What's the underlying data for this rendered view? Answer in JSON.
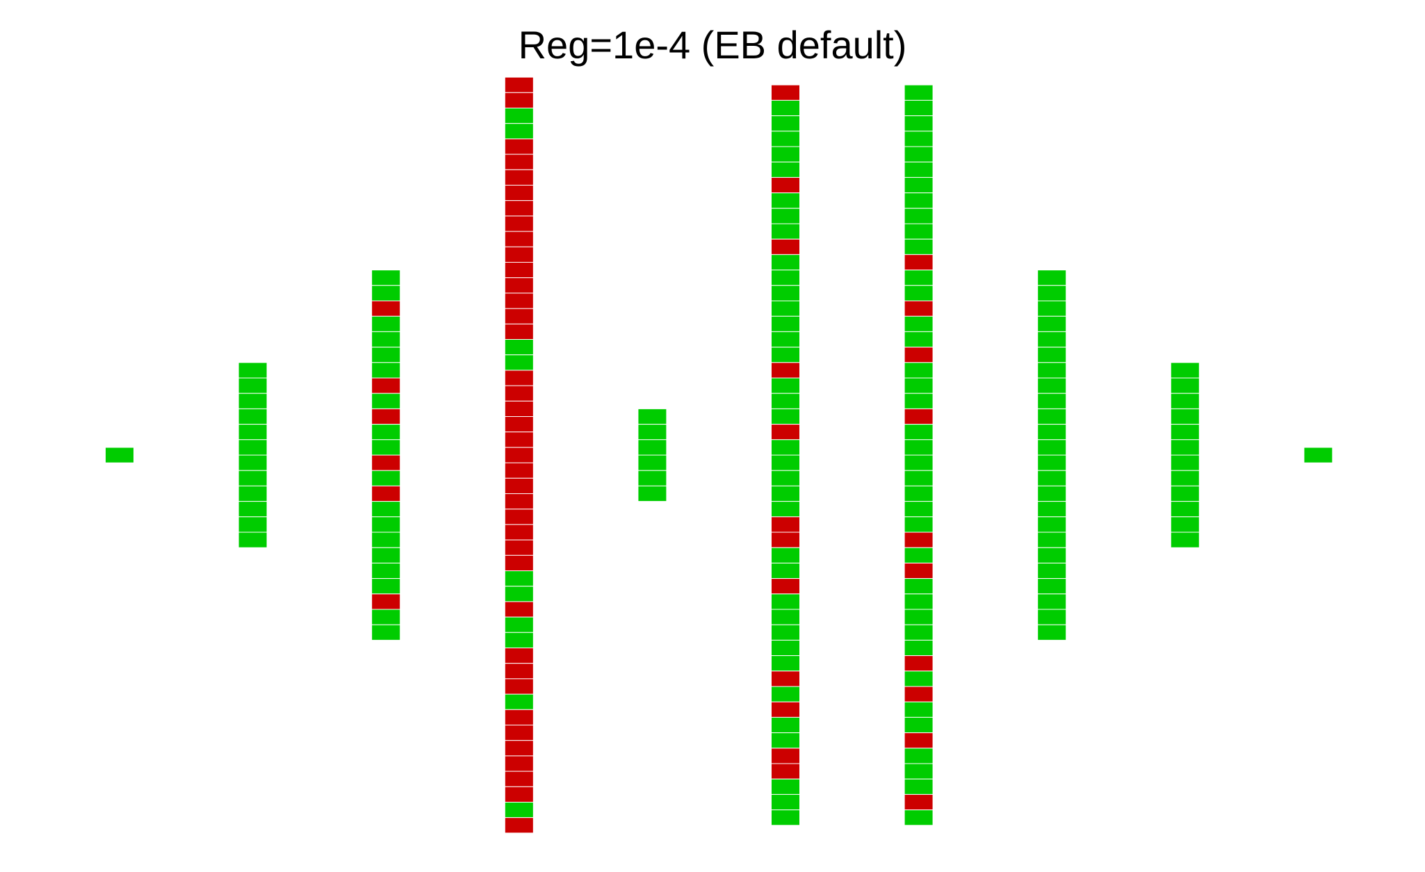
{
  "title": "Reg=1e-4 (EB default)",
  "colors": {
    "correct": "#00cc00",
    "incorrect": "#cc0000",
    "cell_border": "#ffffff"
  },
  "chart_data": {
    "type": "heatmap",
    "title": "Reg=1e-4 (EB default)",
    "columns": [
      {
        "cells": [
          "G"
        ]
      },
      {
        "cells": [
          "G",
          "G",
          "G",
          "G",
          "G",
          "G",
          "G",
          "G",
          "G",
          "G",
          "G",
          "G"
        ]
      },
      {
        "cells": [
          "G",
          "G",
          "R",
          "G",
          "G",
          "G",
          "G",
          "R",
          "G",
          "R",
          "G",
          "G",
          "R",
          "G",
          "R",
          "G",
          "G",
          "G",
          "G",
          "G",
          "G",
          "R",
          "G",
          "G"
        ]
      },
      {
        "cells": [
          "R",
          "R",
          "G",
          "G",
          "R",
          "R",
          "R",
          "R",
          "R",
          "R",
          "R",
          "R",
          "R",
          "R",
          "R",
          "R",
          "R",
          "G",
          "G",
          "R",
          "R",
          "R",
          "R",
          "R",
          "R",
          "R",
          "R",
          "R",
          "R",
          "R",
          "R",
          "R",
          "G",
          "G",
          "R",
          "G",
          "G",
          "R",
          "R",
          "R",
          "G",
          "R",
          "R",
          "R",
          "R",
          "R",
          "R",
          "G",
          "R"
        ]
      },
      {
        "cells": [
          "G",
          "G",
          "G",
          "G",
          "G",
          "G"
        ]
      },
      {
        "cells": [
          "R",
          "G",
          "G",
          "G",
          "G",
          "G",
          "R",
          "G",
          "G",
          "G",
          "R",
          "G",
          "G",
          "G",
          "G",
          "G",
          "G",
          "G",
          "R",
          "G",
          "G",
          "G",
          "R",
          "G",
          "G",
          "G",
          "G",
          "G",
          "R",
          "R",
          "G",
          "G",
          "R",
          "G",
          "G",
          "G",
          "G",
          "G",
          "R",
          "G",
          "R",
          "G",
          "G",
          "R",
          "R",
          "G",
          "G",
          "G"
        ]
      },
      {
        "cells": [
          "G",
          "G",
          "G",
          "G",
          "G",
          "G",
          "G",
          "G",
          "G",
          "G",
          "G",
          "R",
          "G",
          "G",
          "R",
          "G",
          "G",
          "R",
          "G",
          "G",
          "G",
          "R",
          "G",
          "G",
          "G",
          "G",
          "G",
          "G",
          "G",
          "R",
          "G",
          "R",
          "G",
          "G",
          "G",
          "G",
          "G",
          "R",
          "G",
          "R",
          "G",
          "G",
          "R",
          "G",
          "G",
          "G",
          "R",
          "G"
        ]
      },
      {
        "cells": [
          "G",
          "G",
          "G",
          "G",
          "G",
          "G",
          "G",
          "G",
          "G",
          "G",
          "G",
          "G",
          "G",
          "G",
          "G",
          "G",
          "G",
          "G",
          "G",
          "G",
          "G",
          "G",
          "G",
          "G"
        ]
      },
      {
        "cells": [
          "G",
          "G",
          "G",
          "G",
          "G",
          "G",
          "G",
          "G",
          "G",
          "G",
          "G",
          "G"
        ]
      },
      {
        "cells": [
          "G"
        ]
      }
    ]
  }
}
